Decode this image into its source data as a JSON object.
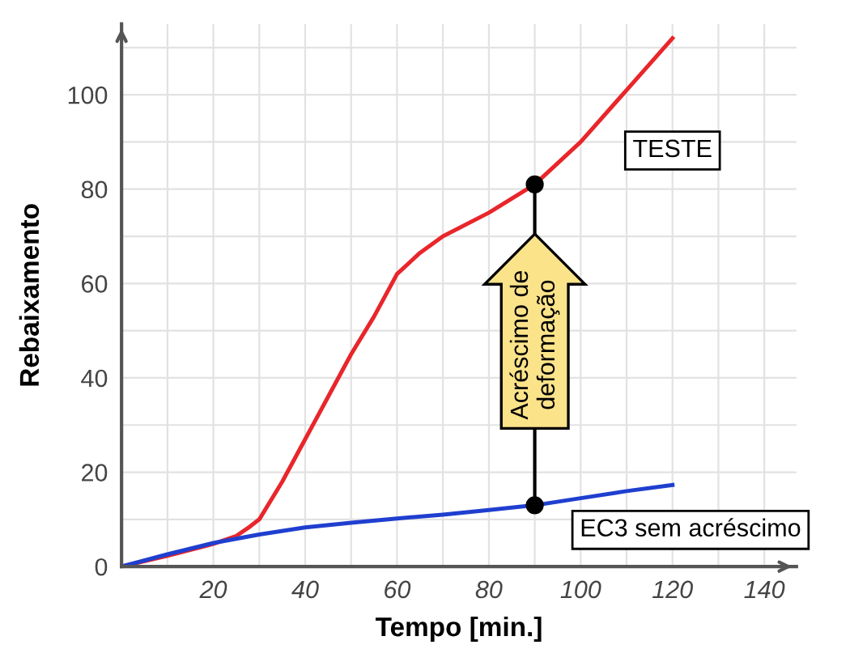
{
  "chart_data": {
    "type": "line",
    "xlabel": "Tempo [min.]",
    "ylabel": "Rebaixamento",
    "xlim": [
      0,
      147
    ],
    "ylim": [
      0,
      115
    ],
    "xticks": [
      20,
      40,
      60,
      80,
      100,
      120,
      140
    ],
    "yticks": [
      0,
      20,
      40,
      60,
      80,
      100
    ],
    "grid": true,
    "legend": false,
    "marker": "none",
    "line_style": "solid",
    "series": [
      {
        "name": "TESTE",
        "color": "#e8262b",
        "x": [
          0,
          10,
          20,
          25,
          28,
          30,
          35,
          40,
          45,
          50,
          55,
          60,
          65,
          70,
          80,
          90,
          100,
          110,
          120
        ],
        "values": [
          0,
          2.3,
          4.8,
          6.5,
          8.5,
          10,
          18,
          27,
          36,
          45,
          53,
          62,
          66.5,
          70,
          75,
          81,
          90,
          101,
          112
        ]
      },
      {
        "name": "EC3 sem acréscimo",
        "color": "#1f3fcf",
        "x": [
          0,
          10,
          20,
          30,
          40,
          50,
          60,
          70,
          80,
          90,
          100,
          110,
          120
        ],
        "values": [
          0,
          2.6,
          5,
          6.8,
          8.3,
          9.3,
          10.2,
          11,
          12,
          13,
          14.5,
          16,
          17.3
        ]
      },
      {
        "type": "scatter",
        "color": "#000000",
        "x": [
          90,
          90
        ],
        "values": [
          81,
          13
        ],
        "marker": "circle"
      }
    ],
    "annotations": [
      "Acréscimo de\ndeformação"
    ]
  }
}
